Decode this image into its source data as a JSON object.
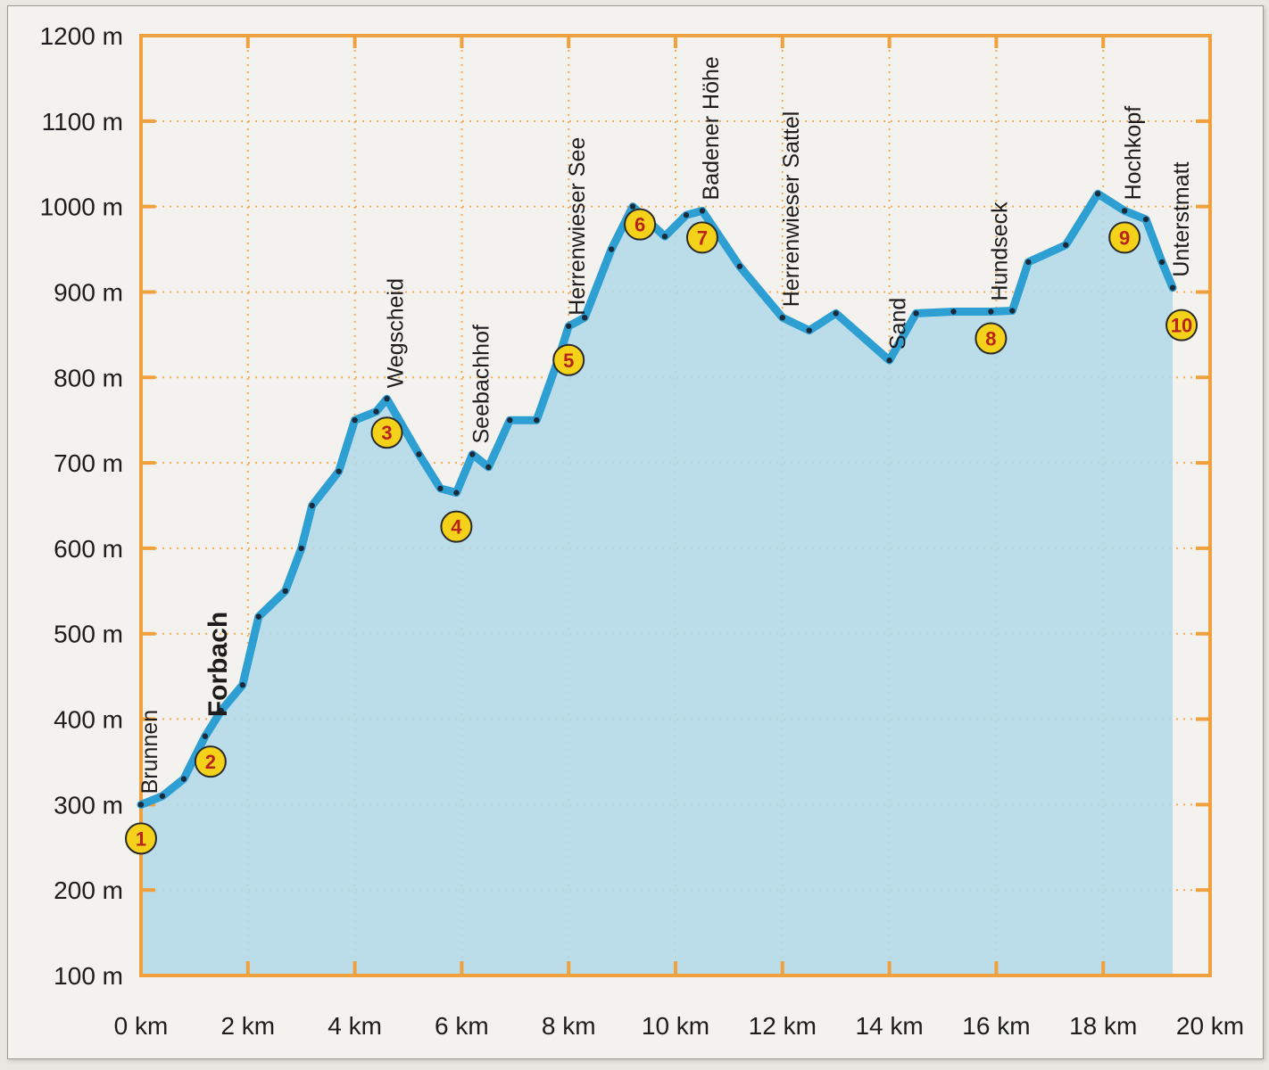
{
  "chart_data": {
    "type": "area",
    "xlabel": "",
    "ylabel": "",
    "xlim": [
      0,
      20
    ],
    "ylim": [
      100,
      1200
    ],
    "x_ticks": [
      {
        "value": 0,
        "label": "0 km"
      },
      {
        "value": 2,
        "label": "2 km"
      },
      {
        "value": 4,
        "label": "4 km"
      },
      {
        "value": 6,
        "label": "6 km"
      },
      {
        "value": 8,
        "label": "8 km"
      },
      {
        "value": 10,
        "label": "10 km"
      },
      {
        "value": 12,
        "label": "12 km"
      },
      {
        "value": 14,
        "label": "14 km"
      },
      {
        "value": 16,
        "label": "16 km"
      },
      {
        "value": 18,
        "label": "18 km"
      },
      {
        "value": 20,
        "label": "20 km"
      }
    ],
    "y_ticks": [
      {
        "value": 100,
        "label": "100 m"
      },
      {
        "value": 200,
        "label": "200 m"
      },
      {
        "value": 300,
        "label": "300 m"
      },
      {
        "value": 400,
        "label": "400 m"
      },
      {
        "value": 500,
        "label": "500 m"
      },
      {
        "value": 600,
        "label": "600 m"
      },
      {
        "value": 700,
        "label": "700 m"
      },
      {
        "value": 800,
        "label": "800 m"
      },
      {
        "value": 900,
        "label": "900 m"
      },
      {
        "value": 1000,
        "label": "1000 m"
      },
      {
        "value": 1100,
        "label": "1100 m"
      },
      {
        "value": 1200,
        "label": "1200 m"
      }
    ],
    "grid": true,
    "profile": [
      {
        "x": 0.0,
        "y": 300
      },
      {
        "x": 0.4,
        "y": 310
      },
      {
        "x": 0.8,
        "y": 330
      },
      {
        "x": 1.2,
        "y": 380
      },
      {
        "x": 1.5,
        "y": 410
      },
      {
        "x": 1.9,
        "y": 440
      },
      {
        "x": 2.2,
        "y": 520
      },
      {
        "x": 2.7,
        "y": 550
      },
      {
        "x": 3.0,
        "y": 600
      },
      {
        "x": 3.2,
        "y": 650
      },
      {
        "x": 3.7,
        "y": 690
      },
      {
        "x": 4.0,
        "y": 750
      },
      {
        "x": 4.4,
        "y": 760
      },
      {
        "x": 4.6,
        "y": 775
      },
      {
        "x": 5.2,
        "y": 710
      },
      {
        "x": 5.6,
        "y": 670
      },
      {
        "x": 5.9,
        "y": 665
      },
      {
        "x": 6.2,
        "y": 710
      },
      {
        "x": 6.5,
        "y": 695
      },
      {
        "x": 6.9,
        "y": 750
      },
      {
        "x": 7.4,
        "y": 750
      },
      {
        "x": 7.8,
        "y": 820
      },
      {
        "x": 8.0,
        "y": 860
      },
      {
        "x": 8.3,
        "y": 870
      },
      {
        "x": 8.8,
        "y": 950
      },
      {
        "x": 9.2,
        "y": 1000
      },
      {
        "x": 9.8,
        "y": 965
      },
      {
        "x": 10.2,
        "y": 990
      },
      {
        "x": 10.5,
        "y": 995
      },
      {
        "x": 11.2,
        "y": 930
      },
      {
        "x": 12.0,
        "y": 870
      },
      {
        "x": 12.5,
        "y": 855
      },
      {
        "x": 13.0,
        "y": 875
      },
      {
        "x": 14.0,
        "y": 820
      },
      {
        "x": 14.5,
        "y": 875
      },
      {
        "x": 15.2,
        "y": 877
      },
      {
        "x": 15.9,
        "y": 877
      },
      {
        "x": 16.3,
        "y": 878
      },
      {
        "x": 16.6,
        "y": 935
      },
      {
        "x": 17.3,
        "y": 955
      },
      {
        "x": 17.9,
        "y": 1015
      },
      {
        "x": 18.4,
        "y": 995
      },
      {
        "x": 18.8,
        "y": 985
      },
      {
        "x": 19.1,
        "y": 935
      },
      {
        "x": 19.3,
        "y": 905
      }
    ],
    "markers": [
      {
        "n": "1",
        "x": 0.0,
        "y": 300
      },
      {
        "n": "2",
        "x": 1.3,
        "y": 390
      },
      {
        "n": "3",
        "x": 4.6,
        "y": 775
      },
      {
        "n": "4",
        "x": 5.9,
        "y": 665
      },
      {
        "n": "5",
        "x": 8.0,
        "y": 860
      },
      {
        "n": "6",
        "x": 9.2,
        "y": 1000
      },
      {
        "n": "7",
        "x": 10.5,
        "y": 995
      },
      {
        "n": "8",
        "x": 15.9,
        "y": 877
      },
      {
        "n": "9",
        "x": 18.4,
        "y": 995
      },
      {
        "n": "10",
        "x": 19.3,
        "y": 905
      }
    ],
    "place_labels": [
      {
        "text": "Brunnen",
        "x": 0.0,
        "y": 300,
        "bold": false
      },
      {
        "text": "Forbach",
        "x": 1.3,
        "y": 390,
        "bold": true
      },
      {
        "text": "Wegscheid",
        "x": 4.6,
        "y": 775,
        "bold": false
      },
      {
        "text": "Seebachhof",
        "x": 6.2,
        "y": 710,
        "bold": false
      },
      {
        "text": "Herrenwieser See",
        "x": 8.0,
        "y": 860,
        "bold": false
      },
      {
        "text": "Badener Höhe",
        "x": 10.5,
        "y": 995,
        "bold": false
      },
      {
        "text": "Herrenwieser Sattel",
        "x": 12.0,
        "y": 870,
        "bold": false
      },
      {
        "text": "Sand",
        "x": 14.0,
        "y": 820,
        "bold": false
      },
      {
        "text": "Hundseck",
        "x": 15.9,
        "y": 877,
        "bold": false
      },
      {
        "text": "Hochkopf",
        "x": 18.4,
        "y": 995,
        "bold": false
      },
      {
        "text": "Unterstmatt",
        "x": 19.3,
        "y": 905,
        "bold": false
      }
    ],
    "colors": {
      "fill": "#b5d9e8",
      "line": "#2d9fd3",
      "axis": "#f0a03c",
      "grid": "#f0a03c",
      "marker_fill": "#f4d21a",
      "marker_text": "#b8231c"
    }
  }
}
